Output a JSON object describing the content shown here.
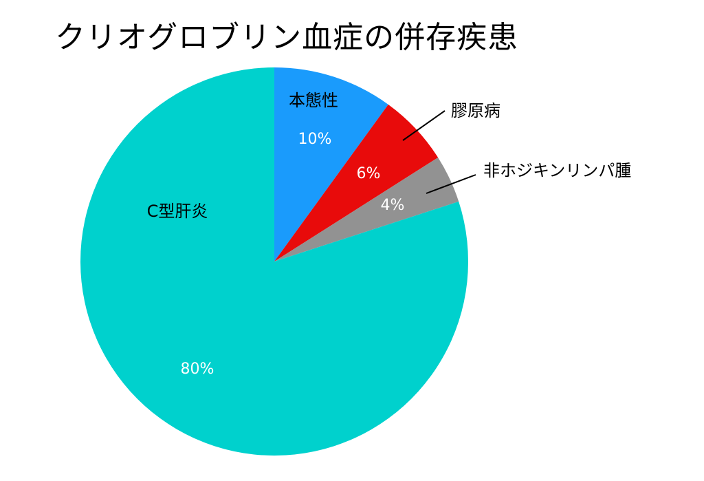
{
  "chart_data": {
    "type": "pie",
    "title": "クリオグロブリン血症の併存疾患",
    "slices": [
      {
        "label": "本態性",
        "value": 10,
        "value_label": "10%",
        "color": "#1a9bfc"
      },
      {
        "label": "膠原病",
        "value": 6,
        "value_label": "6%",
        "color": "#e80b0b"
      },
      {
        "label": "非ホジキンリンパ腫",
        "value": 4,
        "value_label": "4%",
        "color": "#929292"
      },
      {
        "label": "C型肝炎",
        "value": 80,
        "value_label": "80%",
        "color": "#00d1cd"
      }
    ],
    "start_angle": "12 o'clock",
    "direction": "clockwise",
    "legend": "none"
  }
}
